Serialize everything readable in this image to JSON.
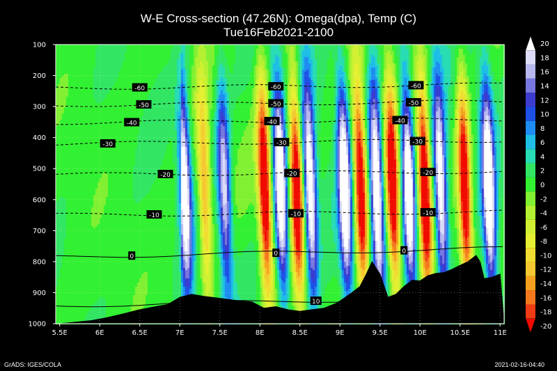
{
  "title": "W-E Cross-section (47.26N): Omega(dpa), Temp (C)",
  "subtitle": "Tue16Feb2021-2100",
  "footer_left": "GrADS: IGES/COLA",
  "footer_right": "2021-02-16-04:40",
  "chart_data": {
    "type": "heatmap",
    "title": "W-E Cross-section (47.26N): Omega(dpa), Temp (C)",
    "subtitle": "Tue16Feb2021-2100",
    "xlabel": "",
    "ylabel": "",
    "x_ticks": [
      "5.5E",
      "6E",
      "6.5E",
      "7E",
      "7.5E",
      "8E",
      "8.5E",
      "9E",
      "9.5E",
      "10E",
      "10.5E",
      "11E"
    ],
    "x_tick_values": [
      5.5,
      6,
      6.5,
      7,
      7.5,
      8,
      8.5,
      9,
      9.5,
      10,
      10.5,
      11
    ],
    "xlim": [
      5.45,
      11.05
    ],
    "y_ticks": [
      100,
      200,
      300,
      400,
      500,
      600,
      700,
      800,
      900,
      1000
    ],
    "ylim": [
      100,
      1000
    ],
    "y_reversed": true,
    "grid": true,
    "colorbar": {
      "levels": [
        20,
        18,
        16,
        14,
        12,
        10,
        8,
        6,
        4,
        2,
        0,
        -2,
        -4,
        -6,
        -8,
        -10,
        -12,
        -14,
        -16,
        -18,
        -20
      ],
      "colors": [
        "#ffffff",
        "#dcdcf8",
        "#b8b8f0",
        "#7878e0",
        "#3c3cd0",
        "#1e50e6",
        "#1e8cf0",
        "#1ebee6",
        "#28dcb4",
        "#32e664",
        "#32f032",
        "#82f032",
        "#b4f032",
        "#d2f032",
        "#e6f032",
        "#f0dc32",
        "#f5c832",
        "#f5a01e",
        "#f5781e",
        "#f03c14",
        "#f00a00"
      ]
    },
    "temperature_contours": [
      {
        "label": "-60",
        "pressure": 240,
        "labels_at": [
          6.5,
          8.2,
          9.95
        ]
      },
      {
        "label": "-50",
        "pressure": 295,
        "labels_at": [
          6.55,
          8.2,
          9.92
        ]
      },
      {
        "label": "-40",
        "pressure": 352,
        "labels_at": [
          6.4,
          8.15,
          9.75
        ]
      },
      {
        "label": "-30",
        "pressure": 420,
        "labels_at": [
          6.1,
          8.27,
          9.97
        ]
      },
      {
        "label": "-20",
        "pressure": 520,
        "labels_at": [
          6.82,
          8.4,
          10.1
        ]
      },
      {
        "label": "-10",
        "pressure": 650,
        "labels_at": [
          6.68,
          8.45,
          10.1
        ]
      },
      {
        "label": "0",
        "pressure": 785,
        "labels_at": [
          6.4,
          8.2,
          9.8
        ]
      },
      {
        "label": "10",
        "pressure": 942,
        "labels_at": [
          8.7
        ]
      }
    ],
    "terrain": {
      "x": [
        5.5,
        5.7,
        5.9,
        6.1,
        6.3,
        6.5,
        6.7,
        6.85,
        7.0,
        7.15,
        7.3,
        7.5,
        7.7,
        7.9,
        8.05,
        8.2,
        8.35,
        8.5,
        8.65,
        8.8,
        8.95,
        9.05,
        9.15,
        9.25,
        9.33,
        9.4,
        9.5,
        9.6,
        9.7,
        9.8,
        9.9,
        10.0,
        10.1,
        10.2,
        10.3,
        10.4,
        10.5,
        10.6,
        10.7,
        10.75,
        10.8,
        10.9,
        11.0
      ],
      "p": [
        1000,
        995,
        990,
        980,
        968,
        955,
        945,
        938,
        915,
        905,
        912,
        918,
        925,
        930,
        950,
        945,
        955,
        960,
        955,
        950,
        935,
        918,
        900,
        880,
        840,
        800,
        840,
        915,
        905,
        880,
        860,
        862,
        845,
        838,
        835,
        825,
        812,
        800,
        780,
        800,
        855,
        850,
        840
      ]
    },
    "omega_features": [
      {
        "x": 7.05,
        "kind": "updraft",
        "strength": 0.9
      },
      {
        "x": 7.3,
        "kind": "downdraft",
        "strength": 0.6
      },
      {
        "x": 7.55,
        "kind": "updraft",
        "strength": 0.7
      },
      {
        "x": 8.05,
        "kind": "downdraft",
        "strength": 1.0
      },
      {
        "x": 8.25,
        "kind": "updraft",
        "strength": 1.0
      },
      {
        "x": 8.45,
        "kind": "downdraft",
        "strength": 1.0
      },
      {
        "x": 8.62,
        "kind": "updraft",
        "strength": 0.9
      },
      {
        "x": 9.05,
        "kind": "updraft",
        "strength": 1.0
      },
      {
        "x": 9.25,
        "kind": "downdraft",
        "strength": 1.0
      },
      {
        "x": 9.45,
        "kind": "updraft",
        "strength": 1.0
      },
      {
        "x": 9.65,
        "kind": "downdraft",
        "strength": 1.0
      },
      {
        "x": 9.85,
        "kind": "updraft",
        "strength": 1.0
      },
      {
        "x": 10.05,
        "kind": "downdraft",
        "strength": 1.0
      },
      {
        "x": 10.25,
        "kind": "updraft",
        "strength": 0.9
      },
      {
        "x": 10.55,
        "kind": "downdraft",
        "strength": 1.0
      },
      {
        "x": 10.85,
        "kind": "updraft",
        "strength": 1.0
      }
    ]
  }
}
